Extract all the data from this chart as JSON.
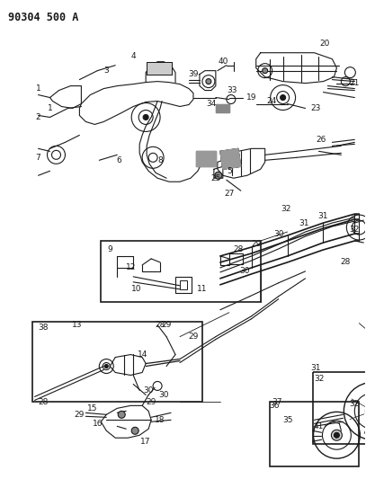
{
  "title": "90304 500 A",
  "bg_color": "#ffffff",
  "line_color": "#1a1a1a",
  "title_fontsize": 8.5,
  "label_fontsize": 6.5,
  "fig_width": 4.07,
  "fig_height": 5.33,
  "dpi": 100
}
